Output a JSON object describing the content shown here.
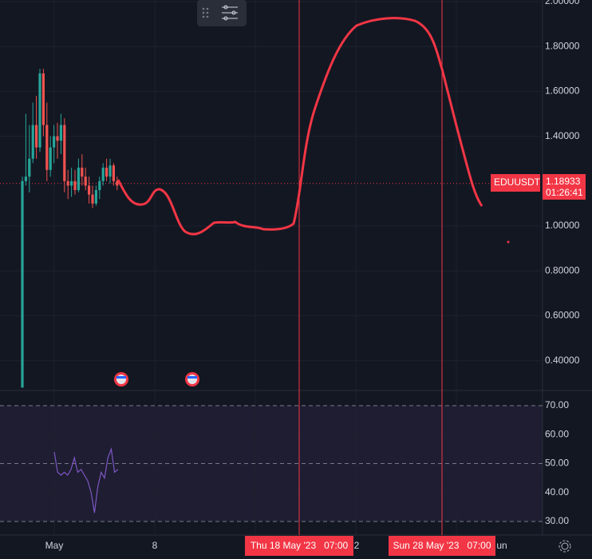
{
  "symbol": {
    "name": "EDUUSDT",
    "price": {
      "value": 1.18933,
      "label": "1.18933"
    },
    "countdown": "01:26:41"
  },
  "price_axis": {
    "ticks": [
      {
        "value": 2.0,
        "label": "2.00000"
      },
      {
        "value": 1.8,
        "label": "1.80000"
      },
      {
        "value": 1.6,
        "label": "1.60000"
      },
      {
        "value": 1.4,
        "label": "1.40000"
      },
      {
        "value": 1.0,
        "label": "1.00000"
      },
      {
        "value": 0.8,
        "label": "0.80000"
      },
      {
        "value": 0.6,
        "label": "0.60000"
      },
      {
        "value": 0.4,
        "label": "0.40000"
      }
    ]
  },
  "rsi_axis": {
    "ticks": [
      {
        "value": 70,
        "label": "70.00"
      },
      {
        "value": 60,
        "label": "60.00"
      },
      {
        "value": 50,
        "label": "50.00"
      },
      {
        "value": 40,
        "label": "40.00"
      },
      {
        "value": 30,
        "label": "30.00"
      }
    ]
  },
  "time_axis": {
    "labels": [
      "May",
      "8",
      "2",
      "un"
    ]
  },
  "crosshair_labels": [
    "Thu 18 May '23   07:00",
    "Sun 28 May '23   07:00"
  ],
  "candles": [
    [
      0.28,
      1.22,
      0.28,
      1.2
    ],
    [
      1.2,
      1.5,
      1.18,
      1.22
    ],
    [
      1.22,
      1.45,
      1.15,
      1.3
    ],
    [
      1.3,
      1.55,
      1.28,
      1.45
    ],
    [
      1.45,
      1.58,
      1.3,
      1.35
    ],
    [
      1.35,
      1.7,
      1.33,
      1.68
    ],
    [
      1.68,
      1.7,
      1.4,
      1.45
    ],
    [
      1.45,
      1.55,
      1.2,
      1.25
    ],
    [
      1.25,
      1.4,
      1.22,
      1.35
    ],
    [
      1.35,
      1.45,
      1.28,
      1.4
    ],
    [
      1.4,
      1.46,
      1.3,
      1.38
    ],
    [
      1.38,
      1.5,
      1.32,
      1.45
    ],
    [
      1.45,
      1.48,
      1.15,
      1.2
    ],
    [
      1.2,
      1.25,
      1.12,
      1.18
    ],
    [
      1.18,
      1.26,
      1.13,
      1.2
    ],
    [
      1.2,
      1.25,
      1.14,
      1.16
    ],
    [
      1.16,
      1.3,
      1.15,
      1.26
    ],
    [
      1.26,
      1.32,
      1.18,
      1.22
    ],
    [
      1.22,
      1.26,
      1.16,
      1.18
    ],
    [
      1.18,
      1.22,
      1.1,
      1.14
    ],
    [
      1.14,
      1.18,
      1.08,
      1.1
    ],
    [
      1.1,
      1.18,
      1.09,
      1.16
    ],
    [
      1.16,
      1.22,
      1.12,
      1.2
    ],
    [
      1.2,
      1.28,
      1.18,
      1.26
    ],
    [
      1.26,
      1.3,
      1.2,
      1.22
    ],
    [
      1.22,
      1.3,
      1.19,
      1.27
    ],
    [
      1.27,
      1.28,
      1.18,
      1.2
    ],
    [
      1.2,
      1.22,
      1.16,
      1.18
    ]
  ],
  "rsi": [
    54,
    47,
    46,
    47,
    46,
    48,
    52,
    47,
    48,
    46,
    44,
    40,
    33,
    42,
    47,
    45,
    52,
    55,
    47,
    48
  ]
}
